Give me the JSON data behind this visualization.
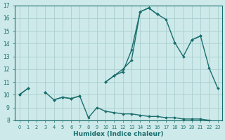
{
  "bg_color": "#cde9e9",
  "grid_color": "#aacece",
  "line_color": "#1b6e6e",
  "xlabel": "Humidex (Indice chaleur)",
  "x": [
    0,
    1,
    2,
    3,
    4,
    5,
    6,
    7,
    8,
    9,
    10,
    11,
    12,
    13,
    14,
    15,
    16,
    17,
    18,
    19,
    20,
    21,
    22,
    23
  ],
  "line_upper": [
    10.0,
    10.5,
    null,
    10.2,
    null,
    null,
    null,
    null,
    null,
    null,
    11.0,
    11.5,
    12.0,
    12.7,
    16.5,
    16.8,
    16.3,
    null,
    14.1,
    null,
    14.3,
    14.6,
    null,
    null
  ],
  "line_mid": [
    10.0,
    10.5,
    null,
    10.2,
    9.6,
    9.8,
    9.7,
    9.9,
    null,
    null,
    11.0,
    11.5,
    11.8,
    13.5,
    16.5,
    16.8,
    16.3,
    15.9,
    14.1,
    13.0,
    14.3,
    14.6,
    12.1,
    10.5
  ],
  "line_low": [
    10.0,
    null,
    null,
    null,
    9.6,
    9.8,
    9.7,
    9.9,
    8.2,
    9.0,
    8.7,
    8.6,
    8.5,
    8.5,
    8.4,
    8.3,
    8.3,
    8.2,
    8.2,
    8.1,
    8.1,
    8.1,
    8.0,
    7.8
  ],
  "ylim": [
    8,
    17
  ],
  "xlim": [
    -0.5,
    23.5
  ],
  "yticks": [
    8,
    9,
    10,
    11,
    12,
    13,
    14,
    15,
    16,
    17
  ]
}
